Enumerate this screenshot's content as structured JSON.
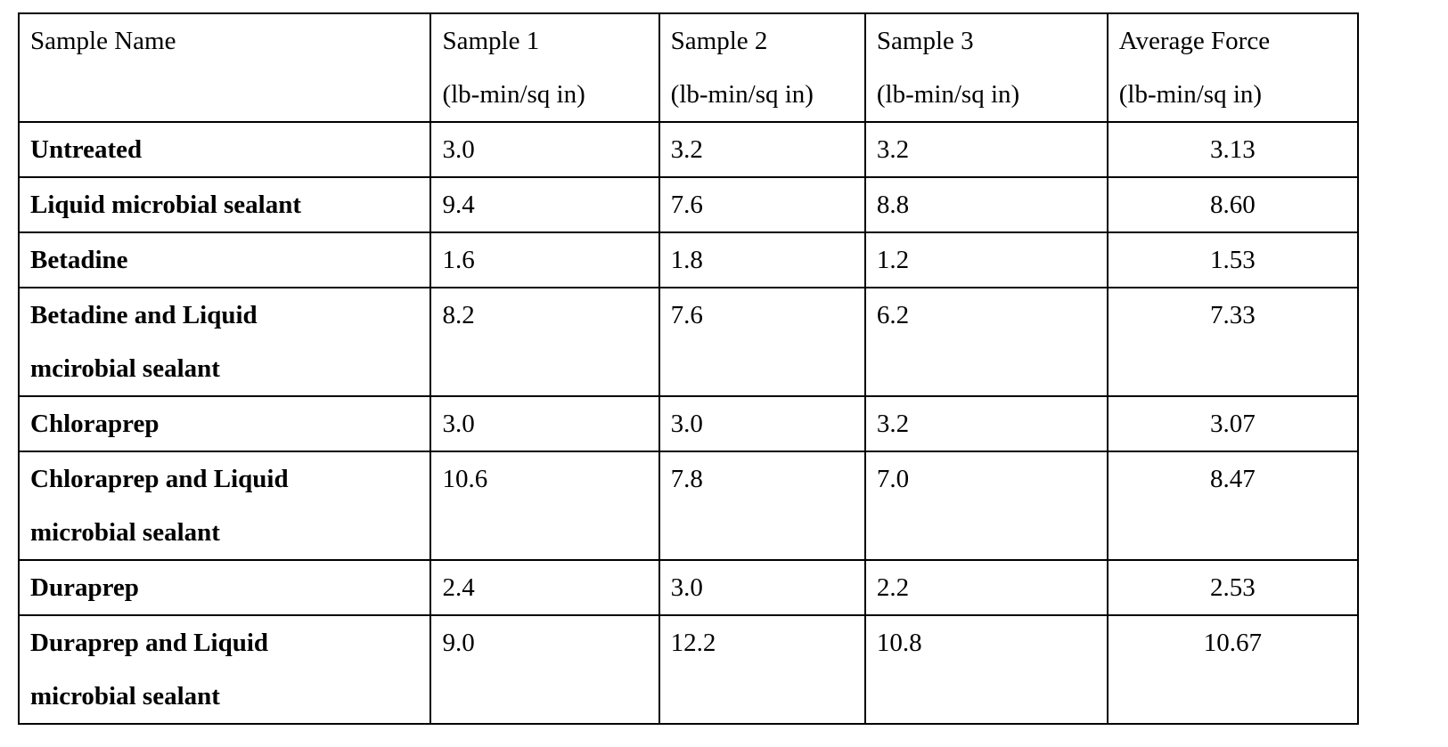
{
  "table": {
    "headers": [
      {
        "line1": "Sample Name",
        "line2": ""
      },
      {
        "line1": "Sample 1",
        "line2": "(lb-min/sq in)"
      },
      {
        "line1": "Sample 2",
        "line2": "(lb-min/sq in)"
      },
      {
        "line1": "Sample 3",
        "line2": "(lb-min/sq in)"
      },
      {
        "line1": "Average Force",
        "line2": "(lb-min/sq in)"
      }
    ],
    "rows": [
      {
        "name1": "Untreated",
        "name2": "",
        "s1": "3.0",
        "s2": "3.2",
        "s3": "3.2",
        "avg": "3.13"
      },
      {
        "name1": "Liquid microbial sealant",
        "name2": "",
        "s1": "9.4",
        "s2": "7.6",
        "s3": "8.8",
        "avg": "8.60"
      },
      {
        "name1": "Betadine",
        "name2": "",
        "s1": "1.6",
        "s2": "1.8",
        "s3": "1.2",
        "avg": "1.53"
      },
      {
        "name1": "Betadine and Liquid",
        "name2": "mcirobial sealant",
        "s1": "8.2",
        "s2": "7.6",
        "s3": "6.2",
        "avg": "7.33"
      },
      {
        "name1": "Chloraprep",
        "name2": "",
        "s1": "3.0",
        "s2": "3.0",
        "s3": "3.2",
        "avg": "3.07"
      },
      {
        "name1": "Chloraprep and Liquid",
        "name2": "microbial sealant",
        "s1": "10.6",
        "s2": "7.8",
        "s3": "7.0",
        "avg": "8.47"
      },
      {
        "name1": "Duraprep",
        "name2": "",
        "s1": "2.4",
        "s2": "3.0",
        "s3": "2.2",
        "avg": "2.53"
      },
      {
        "name1": "Duraprep and Liquid",
        "name2": "microbial sealant",
        "s1": "9.0",
        "s2": "12.2",
        "s3": "10.8",
        "avg": "10.67"
      }
    ]
  }
}
